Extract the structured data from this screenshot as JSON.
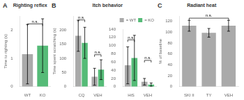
{
  "chart_data": [
    {
      "type": "bar",
      "title": "Righting reflex",
      "panel_label": "A",
      "ylabel": "Time to righting (s)",
      "categories": [
        "WT",
        "KO"
      ],
      "values": [
        1.15,
        1.45
      ],
      "errors": [
        1.05,
        0.95
      ],
      "colors": [
        "#aaaaaa",
        "#55bb77"
      ],
      "ylim": [
        0,
        2.5
      ],
      "yticks": [
        0,
        1,
        2
      ],
      "grid": false,
      "annotations": [
        {
          "text": "n.s.",
          "y": 2.22
        }
      ]
    },
    {
      "type": "bar",
      "title": "Itch behavior",
      "panel_label": "B",
      "ylabel": "Time spent scratching (s)",
      "categories": [
        "CQ",
        "VEH"
      ],
      "series": [
        {
          "name": "= WT",
          "color": "#aaaaaa",
          "values": [
            180,
            35
          ],
          "errors": [
            55,
            30
          ]
        },
        {
          "name": "= KO",
          "color": "#55bb77",
          "values": [
            155,
            60
          ],
          "errors": [
            55,
            35
          ]
        }
      ],
      "ylim": [
        0,
        250
      ],
      "yticks": [
        0,
        50,
        100,
        150,
        200
      ],
      "grid": false,
      "annotations": [
        {
          "text": "n.s.",
          "category": "CQ",
          "y": 236
        },
        {
          "text": "n.s.",
          "category": "VEH",
          "y": 113
        }
      ]
    },
    {
      "type": "bar",
      "categories": [
        "HiS",
        "VEH"
      ],
      "series": [
        {
          "name": "= WT",
          "color": "#aaaaaa",
          "values": [
            52,
            12
          ],
          "errors": [
            45,
            8
          ]
        },
        {
          "name": "= KO",
          "color": "#55bb77",
          "values": [
            70,
            5
          ],
          "errors": [
            55,
            4
          ]
        }
      ],
      "ylim": [
        0,
        140
      ],
      "yticks": [
        0,
        20,
        40,
        60,
        80,
        100,
        120,
        140
      ],
      "grid": false,
      "legend": "upper right",
      "annotations": [
        {
          "text": "n.s.",
          "category": "HiS",
          "y": 114
        },
        {
          "text": "n.s.",
          "category": "VEH",
          "y": 64
        }
      ]
    },
    {
      "type": "bar",
      "title": "Radiant heat",
      "panel_label": "C",
      "ylabel": "% of baseline",
      "categories": [
        "SKI II",
        "TY",
        "VEH"
      ],
      "values": [
        112,
        99,
        112
      ],
      "errors": [
        10,
        8,
        10
      ],
      "colors": [
        "#aaaaaa",
        "#aaaaaa",
        "#aaaaaa"
      ],
      "ylim": [
        0,
        130
      ],
      "yticks": [
        0,
        20,
        40,
        60,
        80,
        100,
        120
      ],
      "grid": false,
      "annotations": [
        {
          "text": "n.s.",
          "y": 126
        }
      ]
    }
  ]
}
